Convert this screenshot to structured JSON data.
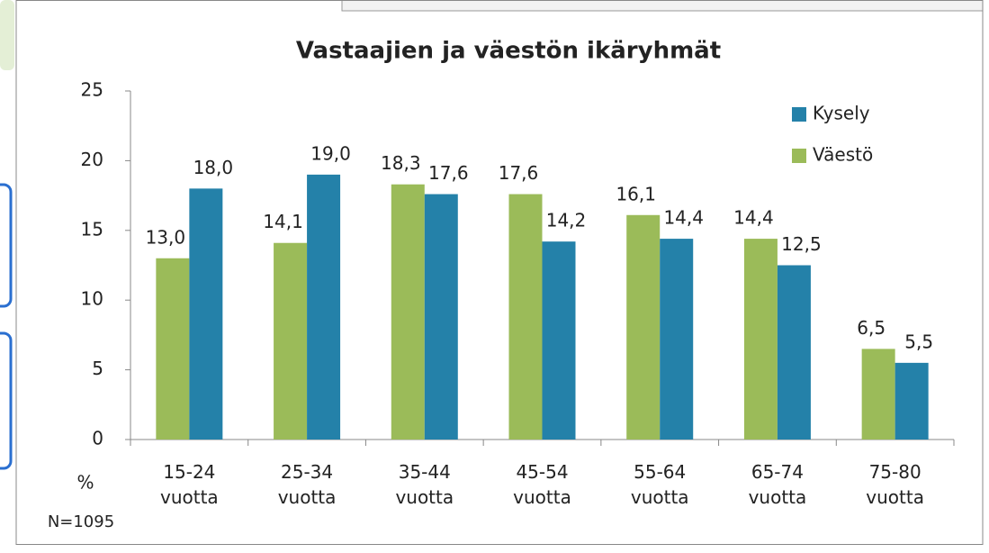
{
  "chart_data": {
    "type": "bar",
    "title": "Vastaajien ja väestön ikäryhmät",
    "categories": [
      "15-24 vuotta",
      "25-34 vuotta",
      "35-44 vuotta",
      "45-54 vuotta",
      "55-64 vuotta",
      "65-74 vuotta",
      "75-80 vuotta"
    ],
    "series": [
      {
        "name": "Väestö",
        "color": "#9bbb59",
        "values": [
          13.0,
          14.1,
          18.3,
          17.6,
          16.1,
          14.4,
          6.5
        ],
        "value_labels": [
          "13,0",
          "14,1",
          "18,3",
          "17,6",
          "16,1",
          "14,4",
          "6,5"
        ]
      },
      {
        "name": "Kysely",
        "color": "#2481a9",
        "values": [
          18.0,
          19.0,
          17.6,
          14.2,
          14.4,
          12.5,
          5.5
        ],
        "value_labels": [
          "18,0",
          "19,0",
          "17,6",
          "14,2",
          "14,4",
          "12,5",
          "5,5"
        ]
      }
    ],
    "ylim": [
      0,
      25
    ],
    "yticks": [
      0,
      5,
      10,
      15,
      20,
      25
    ],
    "grid": false,
    "y_unit_label": "%",
    "note": "N=1095",
    "legend": "top-right"
  }
}
